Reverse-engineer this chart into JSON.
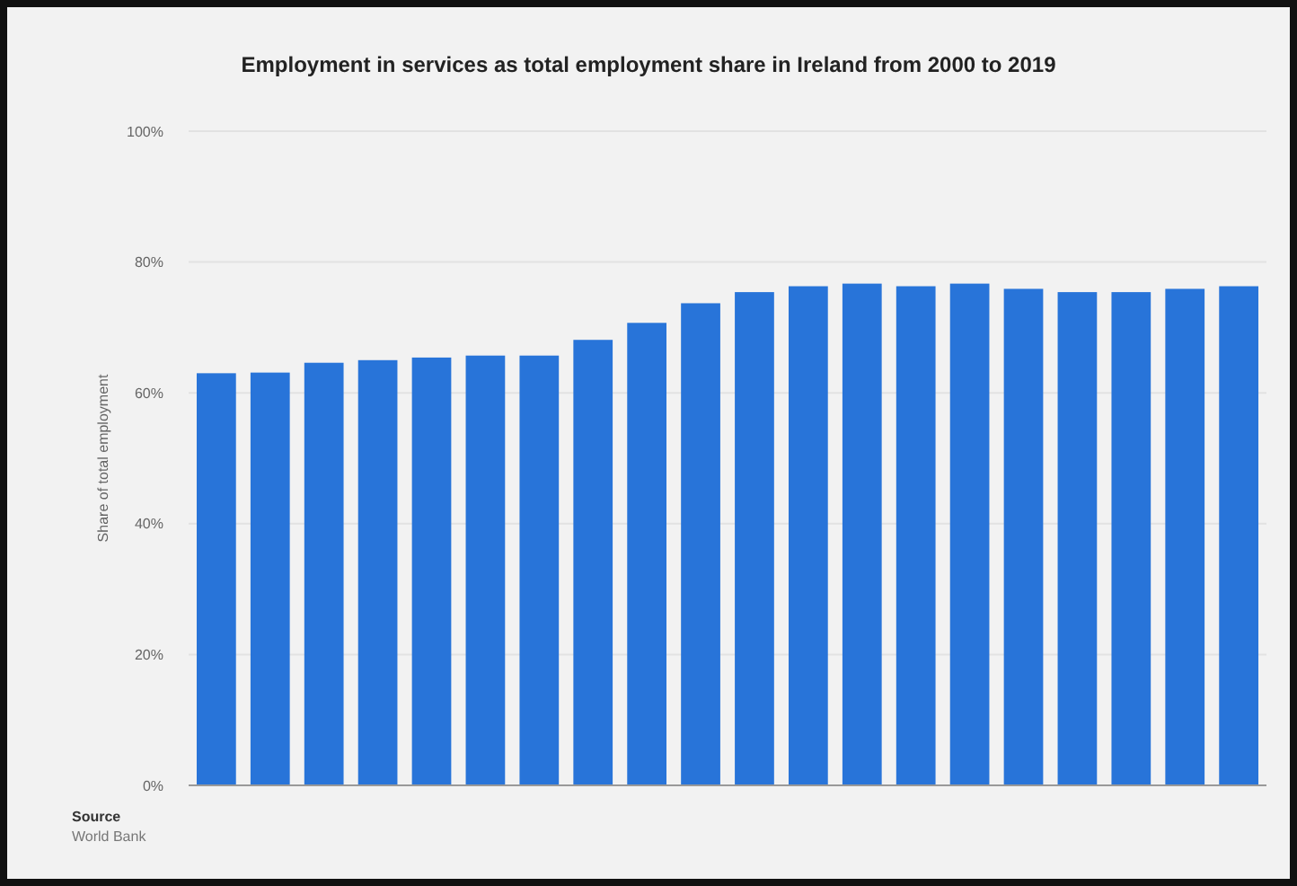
{
  "chart_data": {
    "type": "bar",
    "title": "Employment in services as total employment share in Ireland from 2000 to 2019",
    "ylabel": "Share of total employment",
    "categories": [
      null,
      null,
      null,
      null,
      null,
      null,
      null,
      null,
      null,
      null,
      null,
      null,
      null,
      null,
      null,
      null,
      null,
      null,
      null,
      null
    ],
    "values": [
      63.0,
      63.1,
      64.6,
      65.0,
      65.4,
      65.7,
      65.7,
      68.1,
      70.7,
      73.7,
      75.4,
      76.3,
      76.7,
      76.3,
      76.7,
      75.9,
      75.4,
      75.4,
      75.9,
      76.3
    ],
    "color": "#2874d9",
    "ylim": [
      0,
      100
    ],
    "yticks": [
      {
        "value": 0,
        "label": "0%"
      },
      {
        "value": 20,
        "label": "20%"
      },
      {
        "value": 40,
        "label": "40%"
      },
      {
        "value": 60,
        "label": "60%"
      },
      {
        "value": 80,
        "label": "80%"
      },
      {
        "value": 100,
        "label": "100%"
      }
    ],
    "grid": "y",
    "annotations": [
      "Source",
      "World Bank"
    ]
  }
}
